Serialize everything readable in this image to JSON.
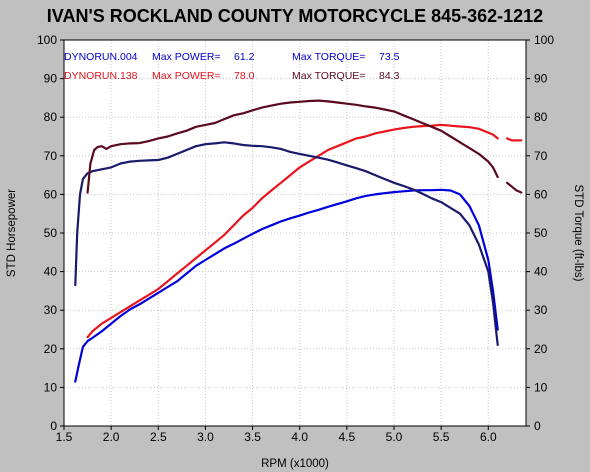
{
  "chart_data": {
    "type": "line",
    "title": "IVAN'S ROCKLAND COUNTY MOTORCYCLE 845-362-1212",
    "xlabel": "RPM (x1000)",
    "ylabel_left": "STD Horsepower",
    "ylabel_right": "STD Torque (ft-lbs)",
    "xlim": [
      1.5,
      6.4
    ],
    "ylim": [
      0,
      100
    ],
    "x_ticks": [
      1.5,
      2.0,
      2.5,
      3.0,
      3.5,
      4.0,
      4.5,
      5.0,
      5.5,
      6.0
    ],
    "x_tick_labels": [
      "1.5",
      "2.0",
      "2.5",
      "3.0",
      "3.5",
      "4.0",
      "4.5",
      "5.0",
      "5.5",
      "6.0"
    ],
    "y_ticks": [
      0,
      10,
      20,
      30,
      40,
      50,
      60,
      70,
      80,
      90,
      100
    ],
    "y_tick_labels": [
      "0",
      "10",
      "20",
      "30",
      "40",
      "50",
      "60",
      "70",
      "80",
      "90",
      "100"
    ],
    "grid": true,
    "legend": [
      {
        "run": "DYNORUN.004",
        "power_label": "Max POWER=",
        "power": "61.2",
        "torque_label": "Max TORQUE=",
        "torque": "73.5",
        "color": "#0000cc"
      },
      {
        "run": "DYNORUN.138",
        "power_label": "Max POWER=",
        "power": "78.0",
        "torque_label": "Max TORQUE=",
        "torque": "84.3",
        "color": "#e0141e"
      }
    ],
    "series": [
      {
        "kind": "power",
        "run": "DYNORUN.004",
        "color": "#0000dd",
        "x": [
          1.62,
          1.65,
          1.7,
          1.75,
          1.8,
          1.9,
          2.0,
          2.1,
          2.2,
          2.3,
          2.4,
          2.5,
          2.6,
          2.7,
          2.8,
          2.9,
          3.0,
          3.1,
          3.2,
          3.3,
          3.4,
          3.5,
          3.6,
          3.7,
          3.8,
          3.9,
          4.0,
          4.1,
          4.2,
          4.3,
          4.4,
          4.5,
          4.6,
          4.7,
          4.8,
          4.9,
          5.0,
          5.1,
          5.2,
          5.3,
          5.4,
          5.5,
          5.6,
          5.7,
          5.8,
          5.9,
          6.0,
          6.05,
          6.1
        ],
        "y": [
          11.5,
          15,
          20.5,
          22,
          22.8,
          24.5,
          26.5,
          28.5,
          30.2,
          31.5,
          33,
          34.5,
          36,
          37.5,
          39.5,
          41.5,
          43,
          44.5,
          46,
          47.2,
          48.5,
          49.8,
          51,
          52,
          53,
          53.8,
          54.5,
          55.3,
          56,
          56.8,
          57.5,
          58.2,
          59,
          59.6,
          60,
          60.3,
          60.6,
          60.8,
          61,
          61.1,
          61.1,
          61.2,
          61,
          60,
          57,
          52,
          43,
          35,
          25
        ]
      },
      {
        "kind": "power",
        "run": "DYNORUN.138",
        "color": "#e8141e",
        "x": [
          1.75,
          1.8,
          1.9,
          2.0,
          2.1,
          2.2,
          2.3,
          2.4,
          2.5,
          2.6,
          2.7,
          2.8,
          2.9,
          3.0,
          3.1,
          3.2,
          3.3,
          3.4,
          3.5,
          3.6,
          3.7,
          3.8,
          3.9,
          4.0,
          4.1,
          4.2,
          4.3,
          4.4,
          4.5,
          4.6,
          4.7,
          4.8,
          4.9,
          5.0,
          5.1,
          5.2,
          5.3,
          5.4,
          5.5,
          5.6,
          5.7,
          5.8,
          5.9,
          6.0,
          6.05,
          6.1,
          6.15,
          6.2,
          6.25,
          6.3,
          6.35
        ],
        "y": [
          23,
          24.5,
          26.5,
          28,
          29.5,
          31,
          32.5,
          34,
          35.5,
          37.5,
          39.5,
          41.5,
          43.5,
          45.5,
          47.5,
          49.5,
          52,
          54.5,
          56.5,
          59,
          61,
          63,
          65,
          67,
          68.5,
          70,
          71.5,
          72.5,
          73.5,
          74.5,
          75,
          75.8,
          76.3,
          76.8,
          77.2,
          77.5,
          77.7,
          77.8,
          78,
          77.8,
          77.6,
          77.4,
          77,
          76,
          75.5,
          74.5,
          null,
          74.5,
          74,
          74,
          74
        ]
      },
      {
        "kind": "torque",
        "run": "DYNORUN.004",
        "color": "#1a1a6a",
        "x": [
          1.62,
          1.64,
          1.67,
          1.7,
          1.75,
          1.8,
          1.9,
          2.0,
          2.1,
          2.2,
          2.3,
          2.4,
          2.5,
          2.6,
          2.7,
          2.8,
          2.9,
          3.0,
          3.1,
          3.2,
          3.3,
          3.4,
          3.5,
          3.6,
          3.7,
          3.8,
          3.9,
          4.0,
          4.1,
          4.2,
          4.3,
          4.4,
          4.5,
          4.6,
          4.7,
          4.8,
          4.9,
          5.0,
          5.1,
          5.2,
          5.3,
          5.4,
          5.5,
          5.6,
          5.7,
          5.8,
          5.9,
          6.0,
          6.05,
          6.1
        ],
        "y": [
          36.5,
          50,
          60,
          64,
          65.5,
          66,
          66.5,
          67,
          68,
          68.5,
          68.7,
          68.8,
          68.9,
          69.5,
          70.5,
          71.5,
          72.5,
          73,
          73.2,
          73.5,
          73.2,
          72.8,
          72.6,
          72.5,
          72.2,
          71.8,
          71,
          70.5,
          70,
          69.5,
          69,
          68.3,
          67.5,
          66.8,
          66,
          65,
          64,
          63,
          62.2,
          61.3,
          60.2,
          59,
          58,
          56.5,
          55,
          52,
          47,
          40,
          32,
          21
        ]
      },
      {
        "kind": "torque",
        "run": "DYNORUN.138",
        "color": "#5a0a1e",
        "x": [
          1.75,
          1.78,
          1.82,
          1.86,
          1.9,
          1.95,
          2.0,
          2.1,
          2.2,
          2.3,
          2.4,
          2.5,
          2.6,
          2.7,
          2.8,
          2.9,
          3.0,
          3.1,
          3.2,
          3.3,
          3.4,
          3.5,
          3.6,
          3.7,
          3.8,
          3.9,
          4.0,
          4.1,
          4.2,
          4.3,
          4.4,
          4.5,
          4.6,
          4.7,
          4.8,
          4.9,
          5.0,
          5.1,
          5.2,
          5.3,
          5.4,
          5.5,
          5.6,
          5.7,
          5.8,
          5.9,
          6.0,
          6.05,
          6.1,
          6.15,
          6.2,
          6.25,
          6.3,
          6.35
        ],
        "y": [
          60.5,
          68,
          71.5,
          72.3,
          72.5,
          71.8,
          72.5,
          73,
          73.2,
          73.3,
          73.8,
          74.5,
          75,
          75.8,
          76.5,
          77.5,
          78,
          78.5,
          79.5,
          80.5,
          81,
          81.8,
          82.5,
          83,
          83.5,
          83.8,
          84,
          84.2,
          84.3,
          84.1,
          83.8,
          83.5,
          83.2,
          82.8,
          82.5,
          82,
          81.5,
          80.5,
          79.5,
          78.5,
          77.5,
          76.5,
          75,
          73.5,
          72,
          70.5,
          68.5,
          67,
          64.5,
          null,
          63,
          62,
          61,
          60.5
        ]
      }
    ]
  }
}
